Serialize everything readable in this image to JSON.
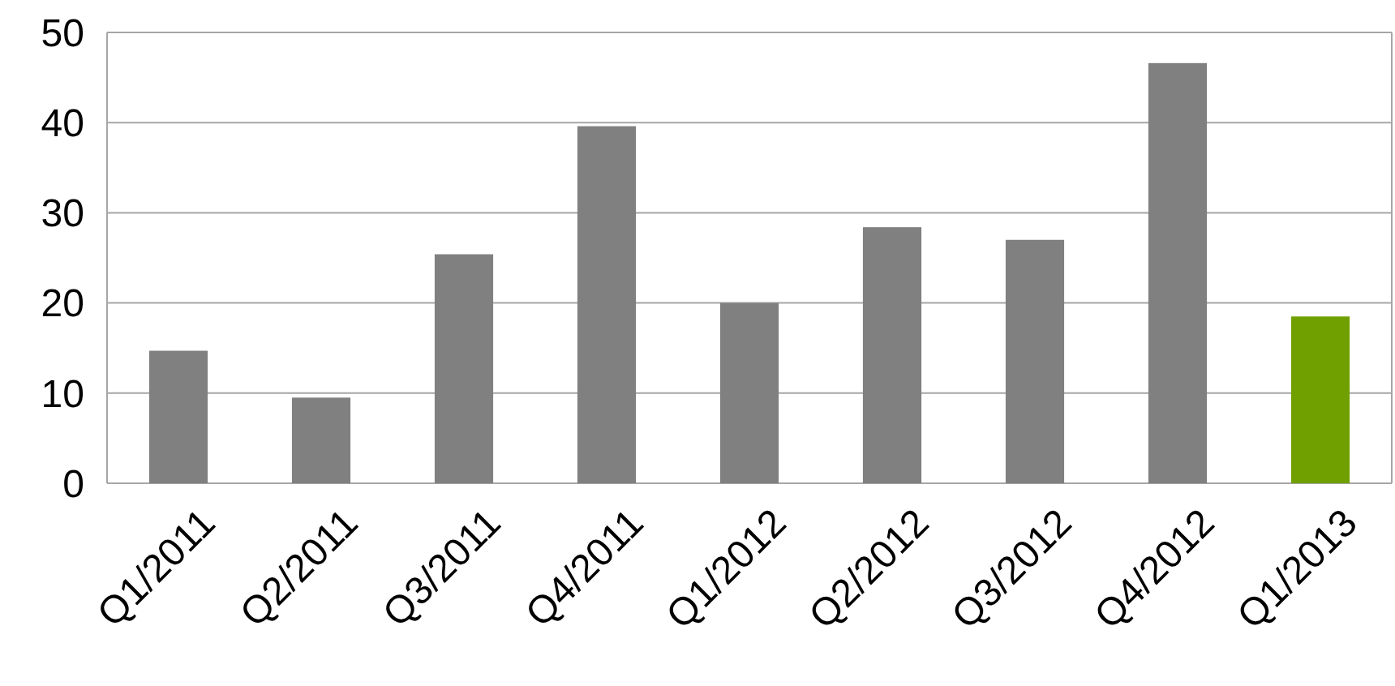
{
  "chart_data": {
    "type": "bar",
    "categories": [
      "Q1/2011",
      "Q2/2011",
      "Q3/2011",
      "Q4/2011",
      "Q1/2012",
      "Q2/2012",
      "Q3/2012",
      "Q4/2012",
      "Q1/2013"
    ],
    "values": [
      14.7,
      9.5,
      25.4,
      39.6,
      20,
      28.4,
      27,
      46.6,
      18.5
    ],
    "colors": [
      "#808080",
      "#808080",
      "#808080",
      "#808080",
      "#808080",
      "#808080",
      "#808080",
      "#808080",
      "#70a000"
    ],
    "ylim": [
      0,
      50
    ],
    "yticks": [
      0,
      10,
      20,
      30,
      40,
      50
    ],
    "grid": "y"
  }
}
